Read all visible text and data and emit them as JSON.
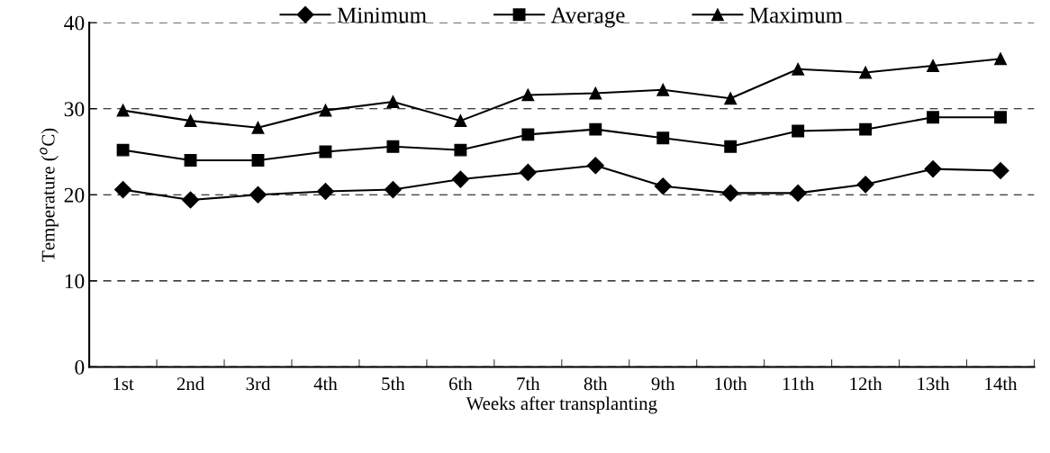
{
  "chart_data": {
    "type": "line",
    "xlabel": "Weeks after transplanting",
    "ylabel": "Temperature ($^{o}$C)",
    "categories": [
      "1st",
      "2nd",
      "3rd",
      "4th",
      "5th",
      "6th",
      "7th",
      "8th",
      "9th",
      "10th",
      "11th",
      "12th",
      "13th",
      "14th"
    ],
    "series": [
      {
        "name": "Minimum",
        "color": "#000000",
        "marker": "diamond",
        "values": [
          20.6,
          19.4,
          20.0,
          20.4,
          20.6,
          21.8,
          22.6,
          23.4,
          21.0,
          20.2,
          20.2,
          21.2,
          23.0,
          22.8
        ]
      },
      {
        "name": "Average",
        "color": "#000000",
        "marker": "square",
        "values": [
          25.2,
          24.0,
          24.0,
          25.0,
          25.6,
          25.2,
          27.0,
          27.6,
          26.6,
          25.6,
          27.4,
          27.6,
          29.0,
          29.0
        ]
      },
      {
        "name": "Maximum",
        "color": "#000000",
        "marker": "triangle",
        "values": [
          29.8,
          28.6,
          27.8,
          29.8,
          30.8,
          28.6,
          31.6,
          31.8,
          32.2,
          31.2,
          34.6,
          34.2,
          35.0,
          35.8
        ]
      }
    ],
    "ylim": [
      0,
      40
    ],
    "yticks": [
      0,
      10,
      20,
      30,
      40
    ],
    "grid": "y",
    "legend": "top",
    "line_style": "solid"
  }
}
